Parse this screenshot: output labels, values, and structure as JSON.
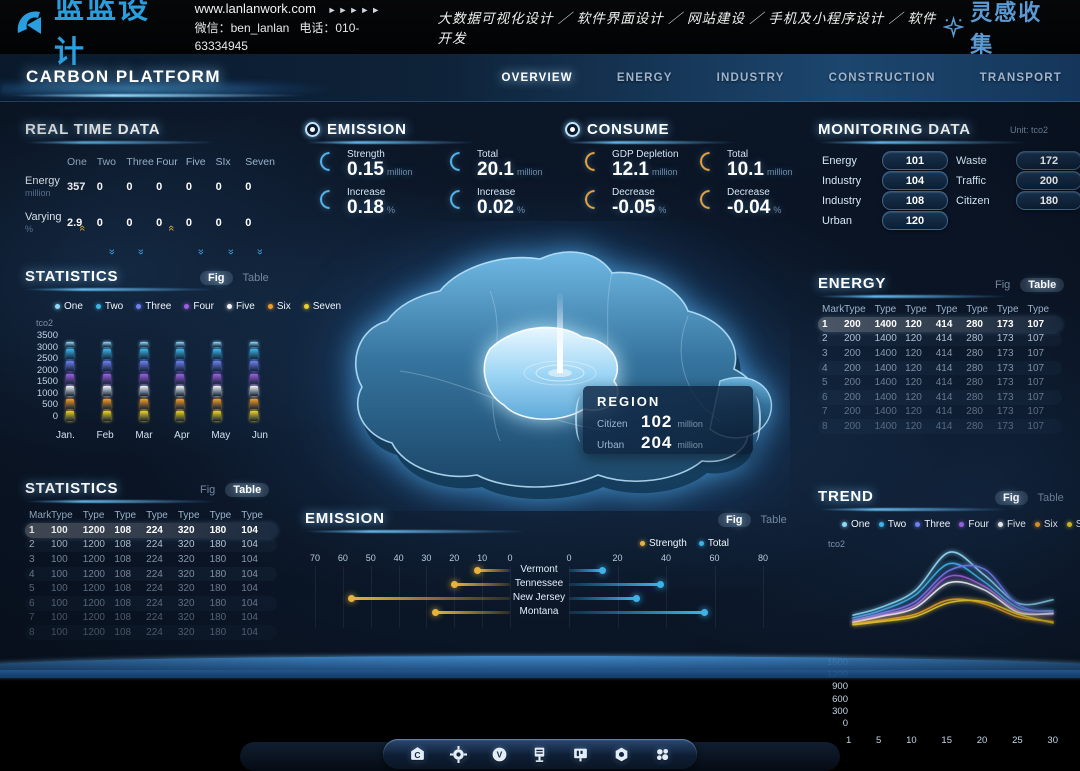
{
  "brand": {
    "logo_text": "蓝蓝设计",
    "url": "www.lanlanwork.com",
    "arrows": "►►►►►",
    "wechat": "微信：ben_lanlan",
    "phone": "电话：010-63334945",
    "services": "大数据可视化设计 ／ 软件界面设计 ／ 网站建设 ／ 手机及小程序设计 ／ 软件开发",
    "collect_label": "灵感收集",
    "logo_color": "#2a9fe0",
    "collect_color": "#5b9bd5"
  },
  "nav": {
    "title": "CARBON PLATFORM",
    "tabs": [
      {
        "label": "OVERVIEW",
        "active": true
      },
      {
        "label": "ENERGY",
        "active": false
      },
      {
        "label": "INDUSTRY",
        "active": false
      },
      {
        "label": "CONSTRUCTION",
        "active": false
      },
      {
        "label": "TRANSPORT",
        "active": false
      }
    ]
  },
  "toggle": {
    "fig": "Fig",
    "table": "Table"
  },
  "realtime": {
    "title": "REAL TIME DATA",
    "columns": [
      "One",
      "Two",
      "Three",
      "Four",
      "Five",
      "SIx",
      "Seven"
    ],
    "rows": [
      {
        "label": "Energy",
        "unit": "million",
        "values": [
          "357",
          "0",
          "0",
          "0",
          "0",
          "0",
          "0"
        ]
      },
      {
        "label": "Varying",
        "unit": "%",
        "values": [
          "2.9",
          "0",
          "0",
          "0",
          "0",
          "0",
          "0"
        ],
        "trends": [
          "up",
          "down",
          "down",
          "up",
          "down",
          "down",
          "down"
        ]
      }
    ]
  },
  "series_legend": [
    {
      "label": "One",
      "color": "#8fd9f8"
    },
    {
      "label": "Two",
      "color": "#3db4e8"
    },
    {
      "label": "Three",
      "color": "#6f7ff0"
    },
    {
      "label": "Four",
      "color": "#9c5fe0"
    },
    {
      "label": "Five",
      "color": "#f2f5f8"
    },
    {
      "label": "Six",
      "color": "#f09c28"
    },
    {
      "label": "Seven",
      "color": "#ecd02c"
    }
  ],
  "statistics_fig": {
    "title": "STATISTICS",
    "active_toggle": "fig",
    "unit": "tco2",
    "yticks": [
      "3500",
      "3000",
      "2500",
      "2000",
      "1500",
      "1000",
      "500",
      "0"
    ],
    "months": [
      "Jan.",
      "Feb",
      "Mar",
      "Apr",
      "May",
      "Jun"
    ]
  },
  "statistics_table": {
    "title": "STATISTICS",
    "active_toggle": "table",
    "headers": [
      "Mark",
      "Type",
      "Type",
      "Type",
      "Type",
      "Type",
      "Type",
      "Type"
    ],
    "rows": [
      [
        "1",
        "100",
        "1200",
        "108",
        "224",
        "320",
        "180",
        "104"
      ],
      [
        "2",
        "100",
        "1200",
        "108",
        "224",
        "320",
        "180",
        "104"
      ],
      [
        "3",
        "100",
        "1200",
        "108",
        "224",
        "320",
        "180",
        "104"
      ],
      [
        "4",
        "100",
        "1200",
        "108",
        "224",
        "320",
        "180",
        "104"
      ],
      [
        "5",
        "100",
        "1200",
        "108",
        "224",
        "320",
        "180",
        "104"
      ],
      [
        "6",
        "100",
        "1200",
        "108",
        "224",
        "320",
        "180",
        "104"
      ],
      [
        "7",
        "100",
        "1200",
        "108",
        "224",
        "320",
        "180",
        "104"
      ],
      [
        "8",
        "100",
        "1200",
        "108",
        "224",
        "320",
        "180",
        "104"
      ]
    ]
  },
  "emission_stats": {
    "title": "EMISSION",
    "accent": "#53b7f0",
    "items": [
      {
        "label": "Strength",
        "value": "0.15",
        "unit": "million"
      },
      {
        "label": "Total",
        "value": "20.1",
        "unit": "million"
      },
      {
        "label": "Increase",
        "value": "0.18",
        "unit": "%"
      },
      {
        "label": "Increase",
        "value": "0.02",
        "unit": "%"
      }
    ]
  },
  "consume_stats": {
    "title": "CONSUME",
    "accent": "#e8a33d",
    "items": [
      {
        "label": "GDP Depletion",
        "value": "12.1",
        "unit": "million"
      },
      {
        "label": "Total",
        "value": "10.1",
        "unit": "million"
      },
      {
        "label": "Decrease",
        "value": "-0.05",
        "unit": "%"
      },
      {
        "label": "Decrease",
        "value": "-0.04",
        "unit": "%"
      }
    ]
  },
  "region_tooltip": {
    "title": "REGION",
    "rows": [
      {
        "label": "Citizen",
        "value": "102",
        "unit": "million"
      },
      {
        "label": "Urban",
        "value": "204",
        "unit": "million"
      }
    ]
  },
  "monitoring": {
    "title": "MONITORING DATA",
    "unit": "Unit: tco2",
    "left": [
      {
        "label": "Energy",
        "value": "101"
      },
      {
        "label": "Industry",
        "value": "104"
      },
      {
        "label": "Industry",
        "value": "108"
      },
      {
        "label": "Urban",
        "value": "120"
      }
    ],
    "right": [
      {
        "label": "Waste",
        "value": "172"
      },
      {
        "label": "Traffic",
        "value": "200"
      },
      {
        "label": "Citizen",
        "value": "180"
      }
    ]
  },
  "energy_table": {
    "title": "ENERGY",
    "active_toggle": "table",
    "headers": [
      "Mark",
      "Type",
      "Type",
      "Type",
      "Type",
      "Type",
      "Type",
      "Type"
    ],
    "rows": [
      [
        "1",
        "200",
        "1400",
        "120",
        "414",
        "280",
        "173",
        "107"
      ],
      [
        "2",
        "200",
        "1400",
        "120",
        "414",
        "280",
        "173",
        "107"
      ],
      [
        "3",
        "200",
        "1400",
        "120",
        "414",
        "280",
        "173",
        "107"
      ],
      [
        "4",
        "200",
        "1400",
        "120",
        "414",
        "280",
        "173",
        "107"
      ],
      [
        "5",
        "200",
        "1400",
        "120",
        "414",
        "280",
        "173",
        "107"
      ],
      [
        "6",
        "200",
        "1400",
        "120",
        "414",
        "280",
        "173",
        "107"
      ],
      [
        "7",
        "200",
        "1400",
        "120",
        "414",
        "280",
        "173",
        "107"
      ],
      [
        "8",
        "200",
        "1400",
        "120",
        "414",
        "280",
        "173",
        "107"
      ]
    ]
  },
  "trend": {
    "title": "TREND",
    "active_toggle": "fig",
    "unit": "tco2",
    "yticks": [
      "1500",
      "1200",
      "900",
      "600",
      "300",
      "0"
    ],
    "xticks": [
      "1",
      "5",
      "10",
      "15",
      "20",
      "25",
      "30"
    ]
  },
  "emission_chart": {
    "title": "EMISSION",
    "active_toggle": "fig",
    "legend": [
      {
        "label": "Strength",
        "color": "#e8b33d"
      },
      {
        "label": "Total",
        "color": "#3db4e8"
      }
    ],
    "left_ticks": [
      "70",
      "60",
      "50",
      "40",
      "30",
      "20",
      "10",
      "0"
    ],
    "right_ticks": [
      "0",
      "20",
      "40",
      "60",
      "80"
    ]
  },
  "toolbar": {
    "icons": [
      "home-c-icon",
      "gear-icon",
      "circle-v-icon",
      "kiosk-icon",
      "board-icon",
      "nut-icon",
      "apps-icon"
    ]
  },
  "chart_data": [
    {
      "type": "bar",
      "stacked": true,
      "title": "STATISTICS",
      "ylabel": "tco2",
      "ylim": [
        0,
        3500
      ],
      "grid": true,
      "categories": [
        "Jan.",
        "Feb",
        "Mar",
        "Apr",
        "May",
        "Jun"
      ],
      "series": [
        {
          "name": "One",
          "values": [
            300,
            300,
            300,
            300,
            300,
            300
          ]
        },
        {
          "name": "Two",
          "values": [
            500,
            500,
            500,
            500,
            500,
            500
          ]
        },
        {
          "name": "Three",
          "values": [
            500,
            500,
            500,
            500,
            500,
            500
          ]
        },
        {
          "name": "Four",
          "values": [
            500,
            500,
            500,
            500,
            500,
            500
          ]
        },
        {
          "name": "Five",
          "values": [
            500,
            500,
            500,
            500,
            500,
            500
          ]
        },
        {
          "name": "Six",
          "values": [
            500,
            500,
            500,
            500,
            500,
            500
          ]
        },
        {
          "name": "Seven",
          "values": [
            500,
            500,
            500,
            500,
            500,
            500
          ]
        }
      ]
    },
    {
      "type": "line",
      "title": "TREND",
      "ylabel": "tco2",
      "ylim": [
        0,
        1800
      ],
      "xlim": [
        1,
        30
      ],
      "x": [
        1,
        5,
        10,
        15,
        20,
        25,
        30
      ],
      "series": [
        {
          "name": "One",
          "values": [
            260,
            430,
            800,
            1650,
            1150,
            520,
            600
          ]
        },
        {
          "name": "Two",
          "values": [
            200,
            360,
            700,
            1400,
            1000,
            420,
            360
          ]
        },
        {
          "name": "Three",
          "values": [
            150,
            300,
            560,
            1250,
            1280,
            480,
            330
          ]
        },
        {
          "name": "Four",
          "values": [
            120,
            260,
            480,
            1120,
            900,
            360,
            280
          ]
        },
        {
          "name": "Five",
          "values": [
            100,
            230,
            420,
            980,
            820,
            320,
            300
          ]
        },
        {
          "name": "Six",
          "values": [
            70,
            150,
            280,
            600,
            520,
            220,
            120
          ]
        },
        {
          "name": "Seven",
          "values": [
            50,
            120,
            230,
            540,
            560,
            280,
            90
          ]
        }
      ]
    },
    {
      "type": "bar",
      "orientation": "horizontal-diverging",
      "title": "EMISSION",
      "categories": [
        "Vermont",
        "Tennessee",
        "New Jersey",
        "Montana"
      ],
      "series": [
        {
          "name": "Strength",
          "axis_max": 70,
          "values": [
            12,
            20,
            57,
            27
          ]
        },
        {
          "name": "Total",
          "axis_max": 80,
          "values": [
            14,
            38,
            28,
            56
          ]
        }
      ]
    }
  ]
}
